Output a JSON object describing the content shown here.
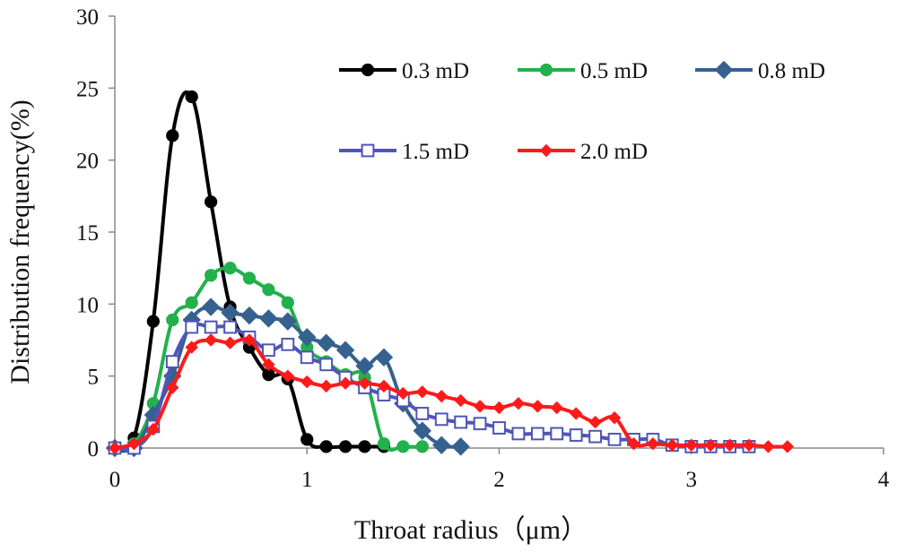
{
  "chart_data": {
    "type": "line",
    "title": "",
    "xlabel": "Throat radius（μm）",
    "ylabel": "Distribution frequency(%)",
    "xlim": [
      0,
      4
    ],
    "ylim": [
      0,
      30
    ],
    "xticks": [
      "0",
      "1",
      "2",
      "3",
      "4"
    ],
    "yticks": [
      "0",
      "5",
      "10",
      "15",
      "20",
      "25",
      "30"
    ],
    "grid": false,
    "legend_position": "top-right",
    "series": [
      {
        "name": "0.3 mD",
        "color": "#000000",
        "marker": "circle",
        "x": [
          0,
          0.1,
          0.2,
          0.3,
          0.4,
          0.5,
          0.6,
          0.7,
          0.8,
          0.9,
          1.0,
          1.1,
          1.2,
          1.3,
          1.4
        ],
        "y": [
          0,
          0.7,
          8.8,
          21.7,
          24.4,
          17.1,
          9.8,
          7.0,
          5.1,
          4.8,
          0.6,
          0.1,
          0.1,
          0.1,
          0.1
        ]
      },
      {
        "name": "0.5 mD",
        "color": "#22B14C",
        "marker": "circle",
        "x": [
          0,
          0.1,
          0.2,
          0.3,
          0.4,
          0.5,
          0.6,
          0.7,
          0.8,
          0.9,
          1.0,
          1.1,
          1.2,
          1.3,
          1.4,
          1.5,
          1.6
        ],
        "y": [
          0,
          0.3,
          3.1,
          8.9,
          10.1,
          12.0,
          12.5,
          11.8,
          11.0,
          10.1,
          7.0,
          6.0,
          5.1,
          4.9,
          0.3,
          0.1,
          0.1
        ]
      },
      {
        "name": "0.8 mD",
        "color": "#36618F",
        "marker": "diamond",
        "x": [
          0,
          0.1,
          0.2,
          0.3,
          0.4,
          0.5,
          0.6,
          0.7,
          0.8,
          0.9,
          1.0,
          1.1,
          1.2,
          1.3,
          1.4,
          1.5,
          1.6,
          1.7,
          1.8
        ],
        "y": [
          0,
          0,
          2.3,
          5.0,
          8.9,
          9.8,
          9.4,
          9.2,
          9.0,
          8.8,
          7.7,
          7.3,
          6.8,
          5.7,
          6.3,
          3.1,
          1.2,
          0.2,
          0.1
        ]
      },
      {
        "name": "1.5 mD",
        "color": "#4F55B8",
        "marker": "open-square",
        "x": [
          0,
          0.1,
          0.2,
          0.3,
          0.4,
          0.5,
          0.6,
          0.7,
          0.8,
          0.9,
          1.0,
          1.1,
          1.2,
          1.3,
          1.4,
          1.5,
          1.6,
          1.7,
          1.8,
          1.9,
          2.0,
          2.1,
          2.2,
          2.3,
          2.4,
          2.5,
          2.6,
          2.7,
          2.8,
          2.9,
          3.0,
          3.1,
          3.2,
          3.3
        ],
        "y": [
          0,
          0,
          1.5,
          6.0,
          8.4,
          8.4,
          8.4,
          7.7,
          6.8,
          7.2,
          6.3,
          5.8,
          4.9,
          4.2,
          3.7,
          3.3,
          2.4,
          2.0,
          1.8,
          1.7,
          1.4,
          1.0,
          1.0,
          1.0,
          0.9,
          0.8,
          0.6,
          0.6,
          0.6,
          0.2,
          0.1,
          0.1,
          0.1,
          0.1
        ]
      },
      {
        "name": "2.0 mD",
        "color": "#FF1A1A",
        "marker": "diamond",
        "x": [
          0,
          0.1,
          0.2,
          0.3,
          0.4,
          0.5,
          0.6,
          0.7,
          0.8,
          0.9,
          1.0,
          1.1,
          1.2,
          1.3,
          1.4,
          1.5,
          1.6,
          1.7,
          1.8,
          1.9,
          2.0,
          2.1,
          2.2,
          2.3,
          2.4,
          2.5,
          2.6,
          2.7,
          2.8,
          2.9,
          3.0,
          3.1,
          3.2,
          3.3,
          3.4,
          3.5
        ],
        "y": [
          0,
          0.3,
          1.3,
          4.2,
          7.0,
          7.5,
          7.3,
          7.5,
          5.8,
          5.0,
          4.6,
          4.3,
          4.5,
          4.5,
          4.3,
          3.8,
          3.9,
          3.6,
          3.3,
          2.9,
          2.8,
          3.1,
          2.9,
          2.8,
          2.4,
          1.8,
          2.1,
          0.3,
          0.3,
          0.2,
          0.2,
          0.2,
          0.2,
          0.2,
          0.1,
          0.1
        ]
      }
    ]
  }
}
